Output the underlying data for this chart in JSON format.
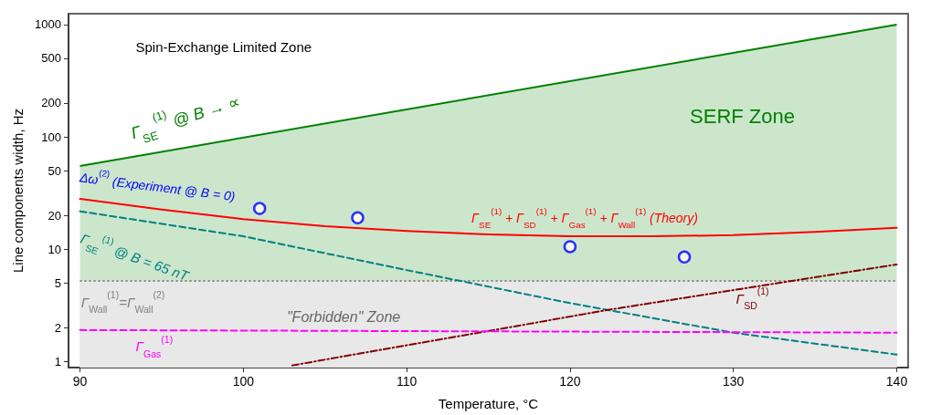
{
  "chart_data": {
    "type": "line",
    "xlabel": "Temperature, °C",
    "ylabel": "Line components width, Hz",
    "xlim": [
      89.3,
      140.7
    ],
    "xticks": [
      90,
      100,
      110,
      120,
      130,
      140
    ],
    "ylim": [
      0.88,
      1250
    ],
    "yticks": [
      1,
      2,
      5,
      10,
      20,
      50,
      100,
      200,
      500,
      1000
    ],
    "log": "y",
    "grid": false,
    "annotations": [
      "Spin-Exchange Limited Zone",
      "SERF Zone",
      "\"Forbidden\" Zone"
    ],
    "series": [
      {
        "type": "area",
        "name": "Γ$_{SE}$$^{(1)}$ @ B → ∝",
        "color": "#008000",
        "x": [
          90,
          140
        ],
        "values": [
          55,
          1000
        ],
        "line_style": "solid"
      },
      {
        "type": "area",
        "name": "Γ$_{Wall}$$^{(1)}$=Γ$_{Wall}$$^{(2)}$",
        "color": "#808080",
        "x": [
          90,
          140
        ],
        "values": [
          5.2,
          5.2
        ],
        "line_style": "dotted"
      },
      {
        "name": "Γ$_{SE}$$^{(1)}$ + Γ$_{SD}$$^{(1)}$ + Γ$_{Gas}$$^{(1)}$ + Γ$_{Wall}$$^{(1)}$ (Theory)",
        "color": "#ff0000",
        "x": [
          90,
          95,
          100,
          105,
          110,
          115,
          120,
          125,
          130,
          135,
          140
        ],
        "values": [
          28,
          22.5,
          18.5,
          16,
          14.5,
          13.5,
          13,
          13,
          13.3,
          14.2,
          15.5
        ],
        "line_style": "solid"
      },
      {
        "name": "Γ$_{SE}$$^{(1)}$ @ B = 65 nT",
        "color": "#008080",
        "x": [
          90,
          100,
          110,
          120,
          130,
          140
        ],
        "values": [
          21.7,
          13,
          6.5,
          3.3,
          1.8,
          1.15
        ],
        "line_style": "dashed"
      },
      {
        "name": "Γ$_{SD}$$^{(1)}$",
        "color": "#800000",
        "x": [
          103,
          122.5,
          140
        ],
        "values": [
          0.92,
          2.9,
          7.3
        ],
        "line_style": "dashdot"
      },
      {
        "name": "Γ$_{Gas}$$^{(1)}$",
        "color": "#ff00ff",
        "x": [
          90,
          140
        ],
        "values": [
          1.9,
          1.8
        ],
        "line_style": "dashed"
      },
      {
        "type": "scatter",
        "name": "Δω$^{(2)}$ (Experiment @ B = 0)",
        "color": "#0000ff",
        "marker": "circle",
        "x": [
          101,
          107,
          120,
          127
        ],
        "values": [
          23,
          19,
          10.5,
          8.5
        ]
      }
    ]
  }
}
